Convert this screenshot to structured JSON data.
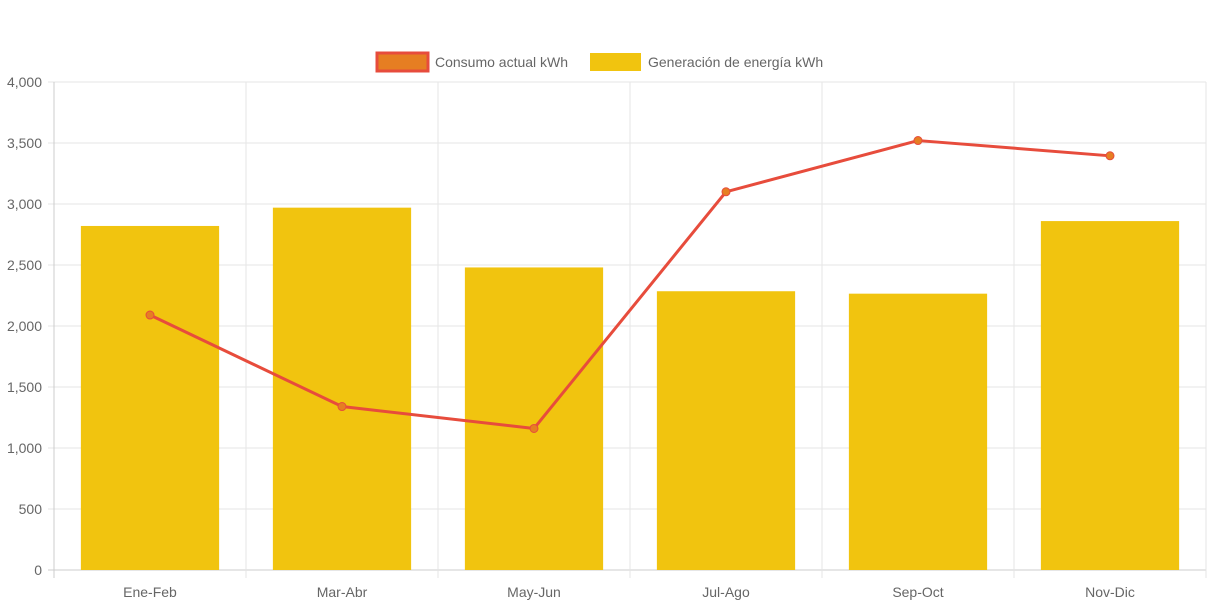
{
  "chart_data": {
    "type": "bar",
    "categories": [
      "Ene-Feb",
      "Mar-Abr",
      "May-Jun",
      "Jul-Ago",
      "Sep-Oct",
      "Nov-Dic"
    ],
    "ylim": [
      0,
      4000
    ],
    "yticks": [
      0,
      500,
      1000,
      1500,
      2000,
      2500,
      3000,
      3500,
      4000
    ],
    "ytick_labels": [
      "0",
      "500",
      "1,000",
      "1,500",
      "2,000",
      "2,500",
      "3,000",
      "3,500",
      "4,000"
    ],
    "grid": true,
    "legend_position": "top",
    "series": [
      {
        "name": "Consumo actual kWh",
        "type": "line",
        "values": [
          2090,
          1340,
          1160,
          3100,
          3520,
          3395
        ],
        "color": "#e74c3c",
        "point_color": "#e67e22"
      },
      {
        "name": "Generación de energía kWh",
        "type": "bar",
        "values": [
          2820,
          2970,
          2480,
          2285,
          2265,
          2860
        ],
        "color": "#f1c40f"
      }
    ]
  }
}
